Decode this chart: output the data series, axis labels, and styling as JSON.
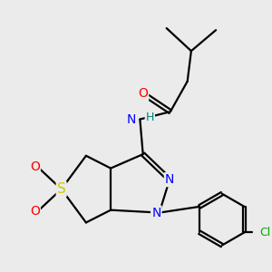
{
  "bg_color": "#ebebeb",
  "bond_color": "#000000",
  "bond_width": 1.6,
  "atom_colors": {
    "O": "#ff0000",
    "N": "#0000ff",
    "S": "#cccc00",
    "Cl": "#00aa00",
    "H": "#008080",
    "C": "#000000"
  },
  "font_size": 9,
  "fig_size": [
    3.0,
    3.0
  ],
  "dpi": 100
}
